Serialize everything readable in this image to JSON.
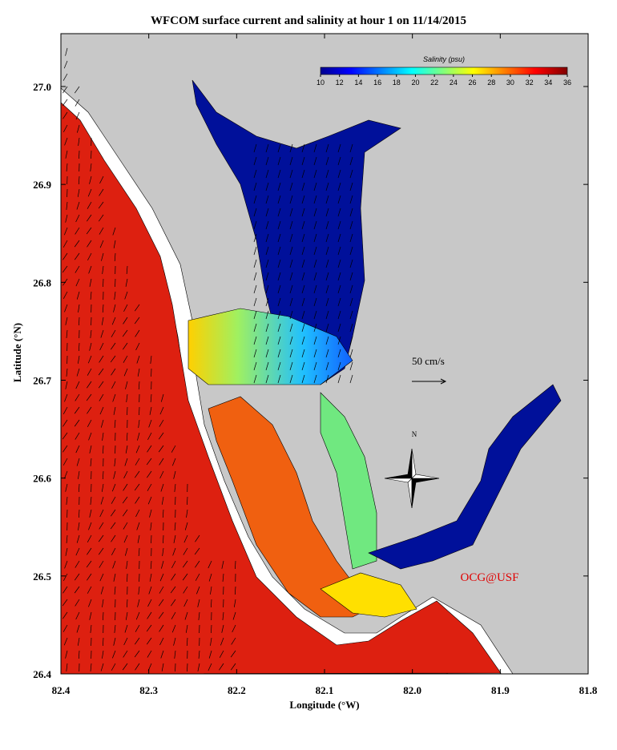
{
  "map": {
    "title": "WFCOM surface current and salinity at hour 1 on 11/14/2015",
    "xlabel": "Longitude (°W)",
    "ylabel": "Latitude (°N)",
    "xlim": [
      82.4,
      81.8
    ],
    "ylim": [
      26.4,
      27.054
    ],
    "xticks": [
      {
        "value": 82.4,
        "label": "82.4"
      },
      {
        "value": 82.3,
        "label": "82.3"
      },
      {
        "value": 82.2,
        "label": "82.2"
      },
      {
        "value": 82.1,
        "label": "82.1"
      },
      {
        "value": 82.0,
        "label": "82.0"
      },
      {
        "value": 81.9,
        "label": "81.9"
      },
      {
        "value": 81.8,
        "label": "81.8"
      }
    ],
    "yticks": [
      {
        "value": 26.4,
        "label": "26.4"
      },
      {
        "value": 26.5,
        "label": "26.5"
      },
      {
        "value": 26.6,
        "label": "26.6"
      },
      {
        "value": 26.7,
        "label": "26.7"
      },
      {
        "value": 26.8,
        "label": "26.8"
      },
      {
        "value": 26.9,
        "label": "26.9"
      },
      {
        "value": 27.0,
        "label": "27.0"
      }
    ],
    "colorbar": {
      "label": "Salinity (psu)",
      "lim": [
        10,
        36
      ],
      "ticks": [
        10,
        12,
        14,
        16,
        18,
        20,
        22,
        24,
        26,
        28,
        30,
        32,
        34,
        36
      ]
    },
    "scale_label": "50 cm/s",
    "north_label": "N",
    "credit": "OCG@USF"
  }
}
